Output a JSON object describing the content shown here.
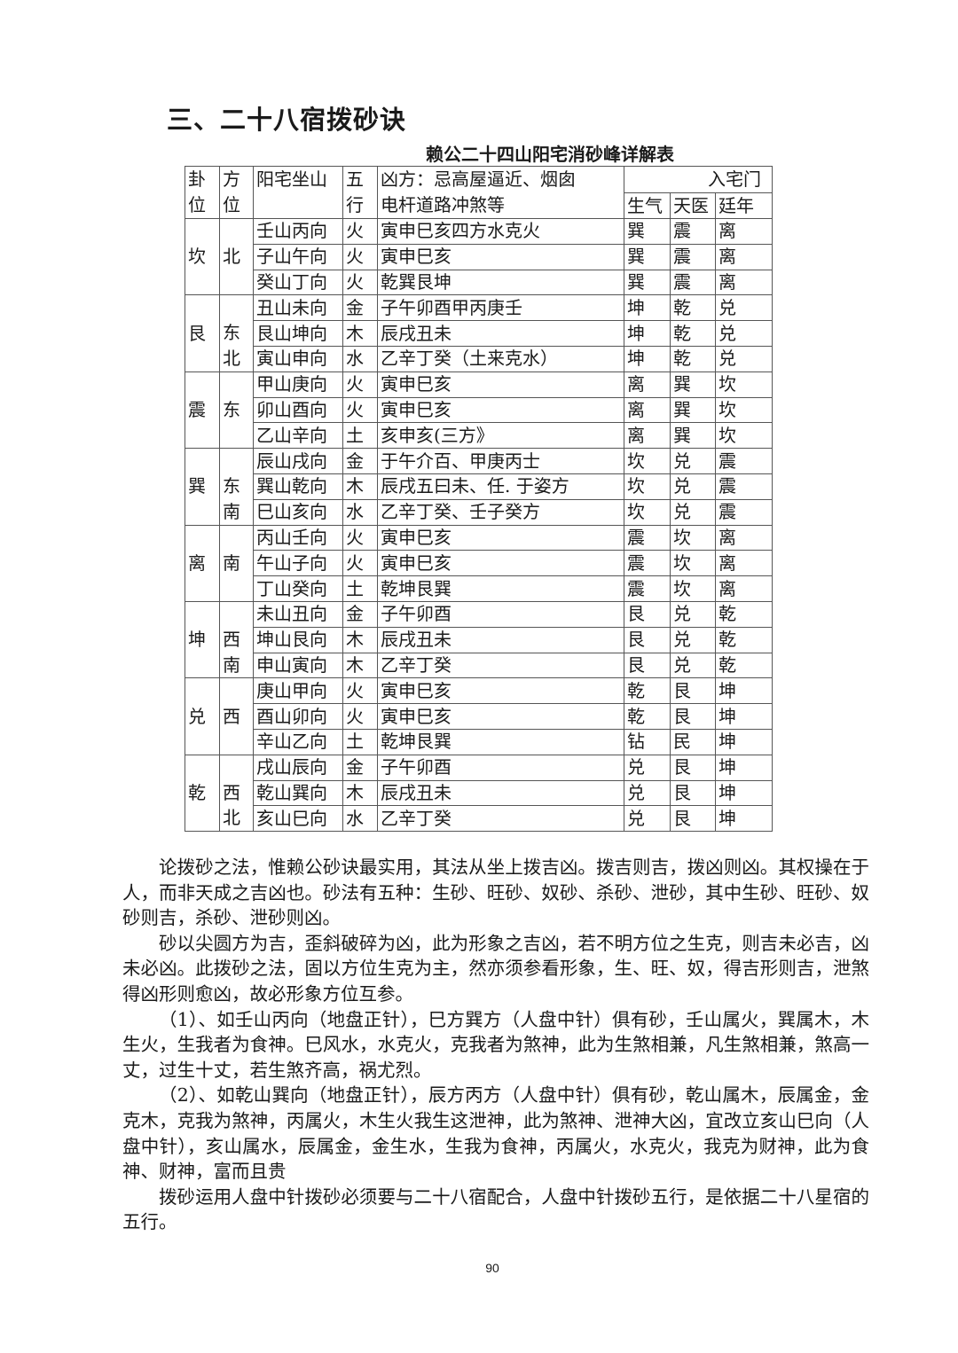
{
  "section_title": "三、二十八宿拨砂诀",
  "table": {
    "caption": "赖公二十四山阳宅消砂峰详解表",
    "headers": {
      "gua": "卦位",
      "direction": "方位",
      "mountain": "阳宅坐山",
      "element": "五行",
      "bad_direction": "凶方：忌高屋逼近、烟囱电杆道路冲煞等",
      "gate": "入宅门",
      "gate_cols": [
        "生气",
        "天医",
        "廷年"
      ]
    },
    "groups": [
      {
        "gua": "坎",
        "direction": "北",
        "rows": [
          [
            "壬山丙向",
            "火",
            "寅申巳亥四方水克火",
            "巽",
            "震",
            "离"
          ],
          [
            "子山午向",
            "火",
            "寅申巳亥",
            "巽",
            "震",
            "离"
          ],
          [
            "癸山丁向",
            "火",
            "乾巽艮坤",
            "巽",
            "震",
            "离"
          ]
        ]
      },
      {
        "gua": "艮",
        "direction": "东北",
        "rows": [
          [
            "丑山未向",
            "金",
            "子午卯酉甲丙庚壬",
            "坤",
            "乾",
            "兑"
          ],
          [
            "艮山坤向",
            "木",
            "辰戌丑未",
            "坤",
            "乾",
            "兑"
          ],
          [
            "寅山申向",
            "水",
            "乙辛丁癸（土来克水）",
            "坤",
            "乾",
            "兑"
          ]
        ]
      },
      {
        "gua": "震",
        "direction": "东",
        "rows": [
          [
            "甲山庚向",
            "火",
            "寅申巳亥",
            "离",
            "巽",
            "坎"
          ],
          [
            "卯山酉向",
            "火",
            "寅申巳亥",
            "离",
            "巽",
            "坎"
          ],
          [
            "乙山辛向",
            "土",
            "亥申亥(三方》",
            "离",
            "巽",
            "坎"
          ]
        ]
      },
      {
        "gua": "巽",
        "direction": "东南",
        "rows": [
          [
            "辰山戌向",
            "金",
            "于午介百、甲庚丙士",
            "坎",
            "兑",
            "震"
          ],
          [
            "巽山乾向",
            "木",
            "辰戌五曰未、任. 于姿方",
            "坎",
            "兑",
            "震"
          ],
          [
            "巳山亥向",
            "水",
            "乙辛丁癸、壬子癸方",
            "坎",
            "兑",
            "震"
          ]
        ]
      },
      {
        "gua": "离",
        "direction": "南",
        "rows": [
          [
            "丙山壬向",
            "火",
            "寅申巳亥",
            "震",
            "坎",
            "离"
          ],
          [
            "午山子向",
            "火",
            "寅申巳亥",
            "震",
            "坎",
            "离"
          ],
          [
            "丁山癸向",
            "土",
            "乾坤艮巽",
            "震",
            "坎",
            "离"
          ]
        ]
      },
      {
        "gua": "坤",
        "direction": "西南",
        "rows": [
          [
            "未山丑向",
            "金",
            "子午卯酉",
            "艮",
            "兑",
            "乾"
          ],
          [
            "坤山艮向",
            "木",
            "辰戌丑未",
            "艮",
            "兑",
            "乾"
          ],
          [
            "申山寅向",
            "木",
            "乙辛丁癸",
            "艮",
            "兑",
            "乾"
          ]
        ]
      },
      {
        "gua": "兑",
        "direction": "西",
        "rows": [
          [
            "庚山甲向",
            "火",
            "寅申巳亥",
            "乾",
            "艮",
            "坤"
          ],
          [
            "酉山卯向",
            "火",
            "寅申巳亥",
            "乾",
            "艮",
            "坤"
          ],
          [
            "辛山乙向",
            "土",
            "乾坤艮巽",
            "钻",
            "民",
            "坤"
          ]
        ]
      },
      {
        "gua": "乾",
        "direction": "西北",
        "rows": [
          [
            "戌山辰向",
            "金",
            "子午卯酉",
            "兑",
            "艮",
            "坤"
          ],
          [
            "乾山巽向",
            "木",
            "辰戌丑未",
            "兑",
            "艮",
            "坤"
          ],
          [
            "亥山巳向",
            "水",
            "乙辛丁癸",
            "兑",
            "艮",
            "坤"
          ]
        ]
      }
    ]
  },
  "paragraphs": [
    "论拨砂之法，惟赖公砂诀最实用，其法从坐上拨吉凶。拨吉则吉，拨凶则凶。其权操在于人，而非天成之吉凶也。砂法有五种：生砂、旺砂、奴砂、杀砂、泄砂，其中生砂、旺砂、奴砂则吉，杀砂、泄砂则凶。",
    "砂以尖圆方为吉，歪斜破碎为凶，此为形象之吉凶，若不明方位之生克，则吉未必吉，凶未必凶。此拨砂之法，固以方位生克为主，然亦须参看形象，生、旺、奴，得吉形则吉，泄煞得凶形则愈凶，故必形象方位互参。",
    "（1）、如壬山丙向（地盘正针），巳方巽方（人盘中针）俱有砂，壬山属火，巽属木，木生火，生我者为食神。巳风水，水克火，克我者为煞神，此为生煞相兼，凡生煞相兼，煞高一丈，过生十丈，若生煞齐高，祸尤烈。",
    "（2）、如乾山巽向（地盘正针），辰方丙方（人盘中针）俱有砂，乾山属木，辰属金，金克木，克我为煞神，丙属火，木生火我生这泄神，此为煞神、泄神大凶，宜改立亥山巳向（人盘中针），亥山属水，辰属金，金生水，生我为食神，丙属火，水克火，我克为财神，此为食神、财神，富而且贵",
    "拨砂运用人盘中针拨砂必须要与二十八宿配合，人盘中针拨砂五行，是依据二十八星宿的五行。"
  ],
  "page_number": "90"
}
